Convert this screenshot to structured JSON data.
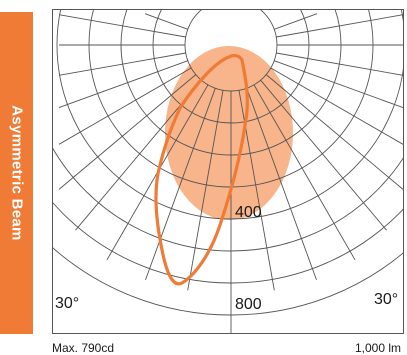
{
  "side_tab": {
    "label": "Asymmetric Beam"
  },
  "diagram": {
    "angle_labels": [
      "30°",
      "30°"
    ],
    "intensity_labels": [
      "400",
      "800"
    ],
    "colors": {
      "accent": "#ef7b36",
      "fill": "#f8b48a",
      "grid": "#555555"
    }
  },
  "footer": {
    "max_label": "Max. 790cd",
    "lumen_label": "1,000 lm"
  }
}
